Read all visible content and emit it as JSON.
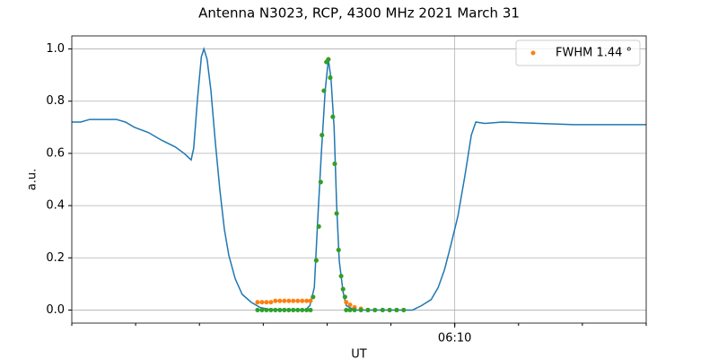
{
  "chart_data": {
    "type": "line",
    "title": "Antenna N3023, RCP, 4300 MHz 2021 March 31",
    "xlabel": "UT",
    "ylabel": "a.u.",
    "xlim": [
      364,
      373
    ],
    "xticks": [
      {
        "value": 370,
        "label": "06:10"
      }
    ],
    "xminorticks": [
      364,
      365,
      366,
      367,
      368,
      369,
      370,
      371,
      372,
      373
    ],
    "ylim": [
      -0.05,
      1.05
    ],
    "yticks": [
      {
        "value": 0,
        "label": "0.0"
      },
      {
        "value": 0.2,
        "label": "0.2"
      },
      {
        "value": 0.4,
        "label": "0.4"
      },
      {
        "value": 0.6,
        "label": "0.6"
      },
      {
        "value": 0.8,
        "label": "0.8"
      },
      {
        "value": 1,
        "label": "1.0"
      }
    ],
    "grid": true,
    "legend": "upper right",
    "series": [
      {
        "kind": "line",
        "color": "#1f77b4",
        "x": [
          364.0,
          364.14,
          364.28,
          364.7,
          364.84,
          364.98,
          365.2,
          365.41,
          365.62,
          365.76,
          365.87,
          365.91,
          365.97,
          366.03,
          366.07,
          366.12,
          366.18,
          366.25,
          366.32,
          366.39,
          366.46,
          366.56,
          366.67,
          366.81,
          366.95,
          367.09,
          367.38,
          367.66,
          367.73,
          367.8,
          367.85,
          367.91,
          367.97,
          368.02,
          368.06,
          368.11,
          368.15,
          368.19,
          368.25,
          368.3,
          368.43,
          368.78,
          369.2,
          369.34,
          369.48,
          369.63,
          369.74,
          369.84,
          369.93,
          370.05,
          370.16,
          370.26,
          370.33,
          370.47,
          370.75,
          371.31,
          371.87,
          372.44,
          373.0
        ],
        "values": [
          0.72,
          0.72,
          0.73,
          0.73,
          0.72,
          0.7,
          0.68,
          0.65,
          0.625,
          0.6,
          0.575,
          0.62,
          0.81,
          0.97,
          1.0,
          0.96,
          0.84,
          0.64,
          0.46,
          0.31,
          0.21,
          0.12,
          0.06,
          0.03,
          0.01,
          0.003,
          0,
          0,
          0.017,
          0.086,
          0.33,
          0.6,
          0.84,
          0.96,
          0.89,
          0.7,
          0.4,
          0.19,
          0.07,
          0.017,
          0,
          0,
          0,
          0,
          0.017,
          0.04,
          0.086,
          0.155,
          0.24,
          0.36,
          0.515,
          0.67,
          0.72,
          0.715,
          0.72,
          0.715,
          0.71,
          0.71,
          0.71
        ]
      },
      {
        "kind": "scatter",
        "name": "FWHM 1.44 °",
        "color": "#ff7f0e",
        "x": [
          366.91,
          366.98,
          367.05,
          367.12,
          367.19,
          367.26,
          367.33,
          367.4,
          367.47,
          367.54,
          367.61,
          367.68,
          367.74,
          367.78,
          367.83,
          367.87,
          367.9,
          367.92,
          367.95,
          367.99,
          368.02,
          368.05,
          368.09,
          368.12,
          368.15,
          368.18,
          368.22,
          368.25,
          368.28,
          368.3,
          368.36,
          368.43,
          368.53,
          368.64,
          368.75,
          368.87,
          368.98,
          369.09,
          369.2
        ],
        "values": [
          0.03,
          0.03,
          0.03,
          0.03,
          0.035,
          0.035,
          0.035,
          0.035,
          0.035,
          0.035,
          0.035,
          0.035,
          0.035,
          0.05,
          0.19,
          0.32,
          0.49,
          0.67,
          0.84,
          0.95,
          0.96,
          0.89,
          0.74,
          0.56,
          0.37,
          0.23,
          0.13,
          0.08,
          0.05,
          0.03,
          0.02,
          0.01,
          0.005,
          0,
          0,
          0,
          0,
          0,
          0
        ]
      },
      {
        "kind": "scatter",
        "color": "#2ca02c",
        "x": [
          366.91,
          366.98,
          367.05,
          367.12,
          367.19,
          367.26,
          367.33,
          367.4,
          367.47,
          367.54,
          367.61,
          367.68,
          367.74,
          367.78,
          367.83,
          367.87,
          367.9,
          367.92,
          367.95,
          367.99,
          368.02,
          368.05,
          368.09,
          368.12,
          368.15,
          368.18,
          368.22,
          368.25,
          368.28,
          368.3,
          368.36,
          368.43,
          368.53,
          368.64,
          368.75,
          368.87,
          368.98,
          369.09,
          369.2
        ],
        "values": [
          0,
          0,
          0,
          0,
          0,
          0,
          0,
          0,
          0,
          0,
          0,
          0,
          0,
          0.05,
          0.19,
          0.32,
          0.49,
          0.67,
          0.84,
          0.95,
          0.96,
          0.89,
          0.74,
          0.56,
          0.37,
          0.23,
          0.13,
          0.08,
          0.05,
          0,
          0,
          0,
          0,
          0,
          0,
          0,
          0,
          0,
          0
        ]
      }
    ]
  }
}
